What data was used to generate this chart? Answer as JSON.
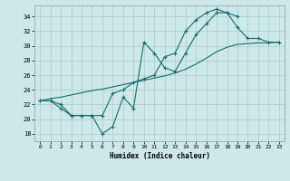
{
  "xlabel": "Humidex (Indice chaleur)",
  "bg_color": "#cce8e8",
  "line_color": "#1a6b6b",
  "grid_color": "#aacccc",
  "xlim": [
    -0.5,
    23.5
  ],
  "ylim": [
    17.0,
    35.5
  ],
  "yticks": [
    18,
    20,
    22,
    24,
    26,
    28,
    30,
    32,
    34
  ],
  "xticks": [
    0,
    1,
    2,
    3,
    4,
    5,
    6,
    7,
    8,
    9,
    10,
    11,
    12,
    13,
    14,
    15,
    16,
    17,
    18,
    19,
    20,
    21,
    22,
    23
  ],
  "line1_x": [
    0,
    1,
    2,
    3,
    4,
    5,
    6,
    7,
    8,
    9,
    10,
    11,
    12,
    13,
    14,
    15,
    16,
    17,
    18,
    19,
    20,
    21,
    22,
    23
  ],
  "line1_y": [
    22.5,
    22.5,
    21.5,
    20.5,
    20.5,
    20.5,
    18.0,
    19.0,
    23.0,
    21.5,
    30.5,
    29.0,
    27.0,
    26.5,
    29.0,
    31.5,
    33.0,
    34.5,
    34.5,
    32.5,
    31.0,
    31.0,
    30.5,
    30.5
  ],
  "line2_x": [
    0,
    1,
    2,
    3,
    4,
    5,
    6,
    7,
    8,
    9,
    10,
    11,
    12,
    13,
    14,
    15,
    16,
    17,
    18,
    19
  ],
  "line2_y": [
    22.5,
    22.5,
    22.0,
    20.5,
    20.5,
    20.5,
    20.5,
    23.5,
    24.0,
    25.0,
    25.5,
    26.0,
    28.5,
    29.0,
    32.0,
    33.5,
    34.5,
    35.0,
    34.5,
    34.0
  ],
  "line3_x": [
    0,
    1,
    2,
    3,
    4,
    5,
    6,
    7,
    8,
    9,
    10,
    11,
    12,
    13,
    14,
    15,
    16,
    17,
    18,
    19,
    20,
    21,
    22,
    23
  ],
  "line3_y": [
    22.5,
    22.8,
    23.0,
    23.3,
    23.6,
    23.9,
    24.1,
    24.4,
    24.7,
    25.0,
    25.3,
    25.6,
    25.9,
    26.3,
    26.8,
    27.5,
    28.3,
    29.2,
    29.8,
    30.2,
    30.3,
    30.4,
    30.4,
    30.5
  ]
}
